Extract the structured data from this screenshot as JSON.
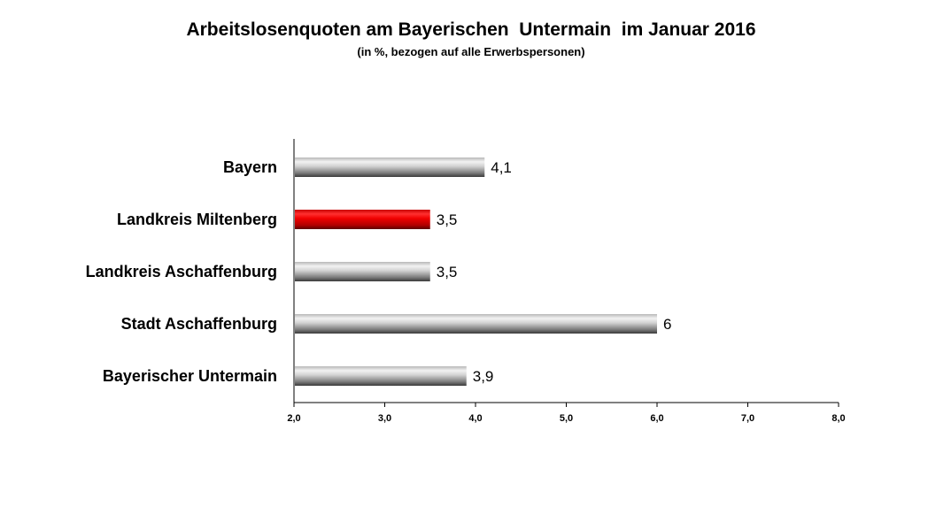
{
  "chart_data": {
    "type": "bar",
    "orientation": "horizontal",
    "title": "Arbeitslosenquoten am Bayerischen  Untermain  im Januar 2016",
    "subtitle": "(in %, bezogen auf alle Erwerbspersonen)",
    "categories": [
      "Bayern",
      "Landkreis Miltenberg",
      "Landkreis Aschaffenburg",
      "Stadt Aschaffenburg",
      "Bayerischer Untermain"
    ],
    "values": [
      4.1,
      3.5,
      3.5,
      6.0,
      3.9
    ],
    "value_labels": [
      "4,1",
      "3,5",
      "3,5",
      "6",
      "3,9"
    ],
    "highlight_index": 1,
    "xlim": [
      2.0,
      8.0
    ],
    "ticks": [
      "2,0",
      "3,0",
      "4,0",
      "5,0",
      "6,0",
      "7,0",
      "8,0"
    ],
    "tick_values": [
      2,
      3,
      4,
      5,
      6,
      7,
      8
    ],
    "grid": false,
    "legend": "none",
    "colors": {
      "default_bar": "#9a9a9a",
      "highlight_bar": "#e00000"
    }
  }
}
